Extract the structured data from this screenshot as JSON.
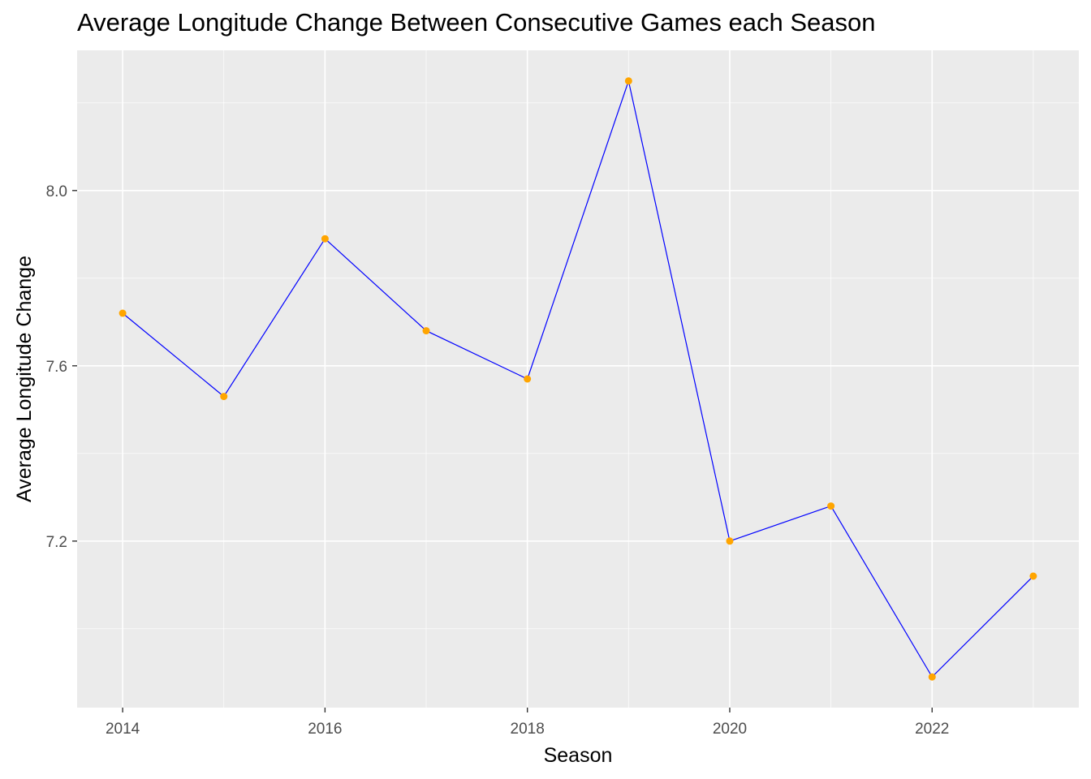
{
  "chart_data": {
    "type": "line",
    "title": "Average Longitude Change Between Consecutive Games each Season",
    "xlabel": "Season",
    "ylabel": "Average Longitude Change",
    "x": [
      2014,
      2015,
      2016,
      2017,
      2018,
      2019,
      2020,
      2021,
      2022,
      2023
    ],
    "series": [
      {
        "values": [
          7.72,
          7.53,
          7.89,
          7.68,
          7.57,
          8.25,
          7.2,
          7.28,
          6.89,
          7.12
        ]
      }
    ],
    "xlim": [
      2013.55,
      2023.45
    ],
    "ylim": [
      6.82,
      8.32
    ],
    "x_ticks": [
      2014,
      2016,
      2018,
      2020,
      2022
    ],
    "x_tick_labels": [
      "2014",
      "2016",
      "2018",
      "2020",
      "2022"
    ],
    "y_ticks": [
      7.2,
      7.6,
      8.0
    ],
    "y_tick_labels": [
      "7.2",
      "7.6",
      "8.0"
    ],
    "grid": true,
    "line_color": "#0000FF",
    "point_color": "#FFA500",
    "panel_background": "#EBEBEB",
    "grid_color": "#FFFFFF"
  }
}
